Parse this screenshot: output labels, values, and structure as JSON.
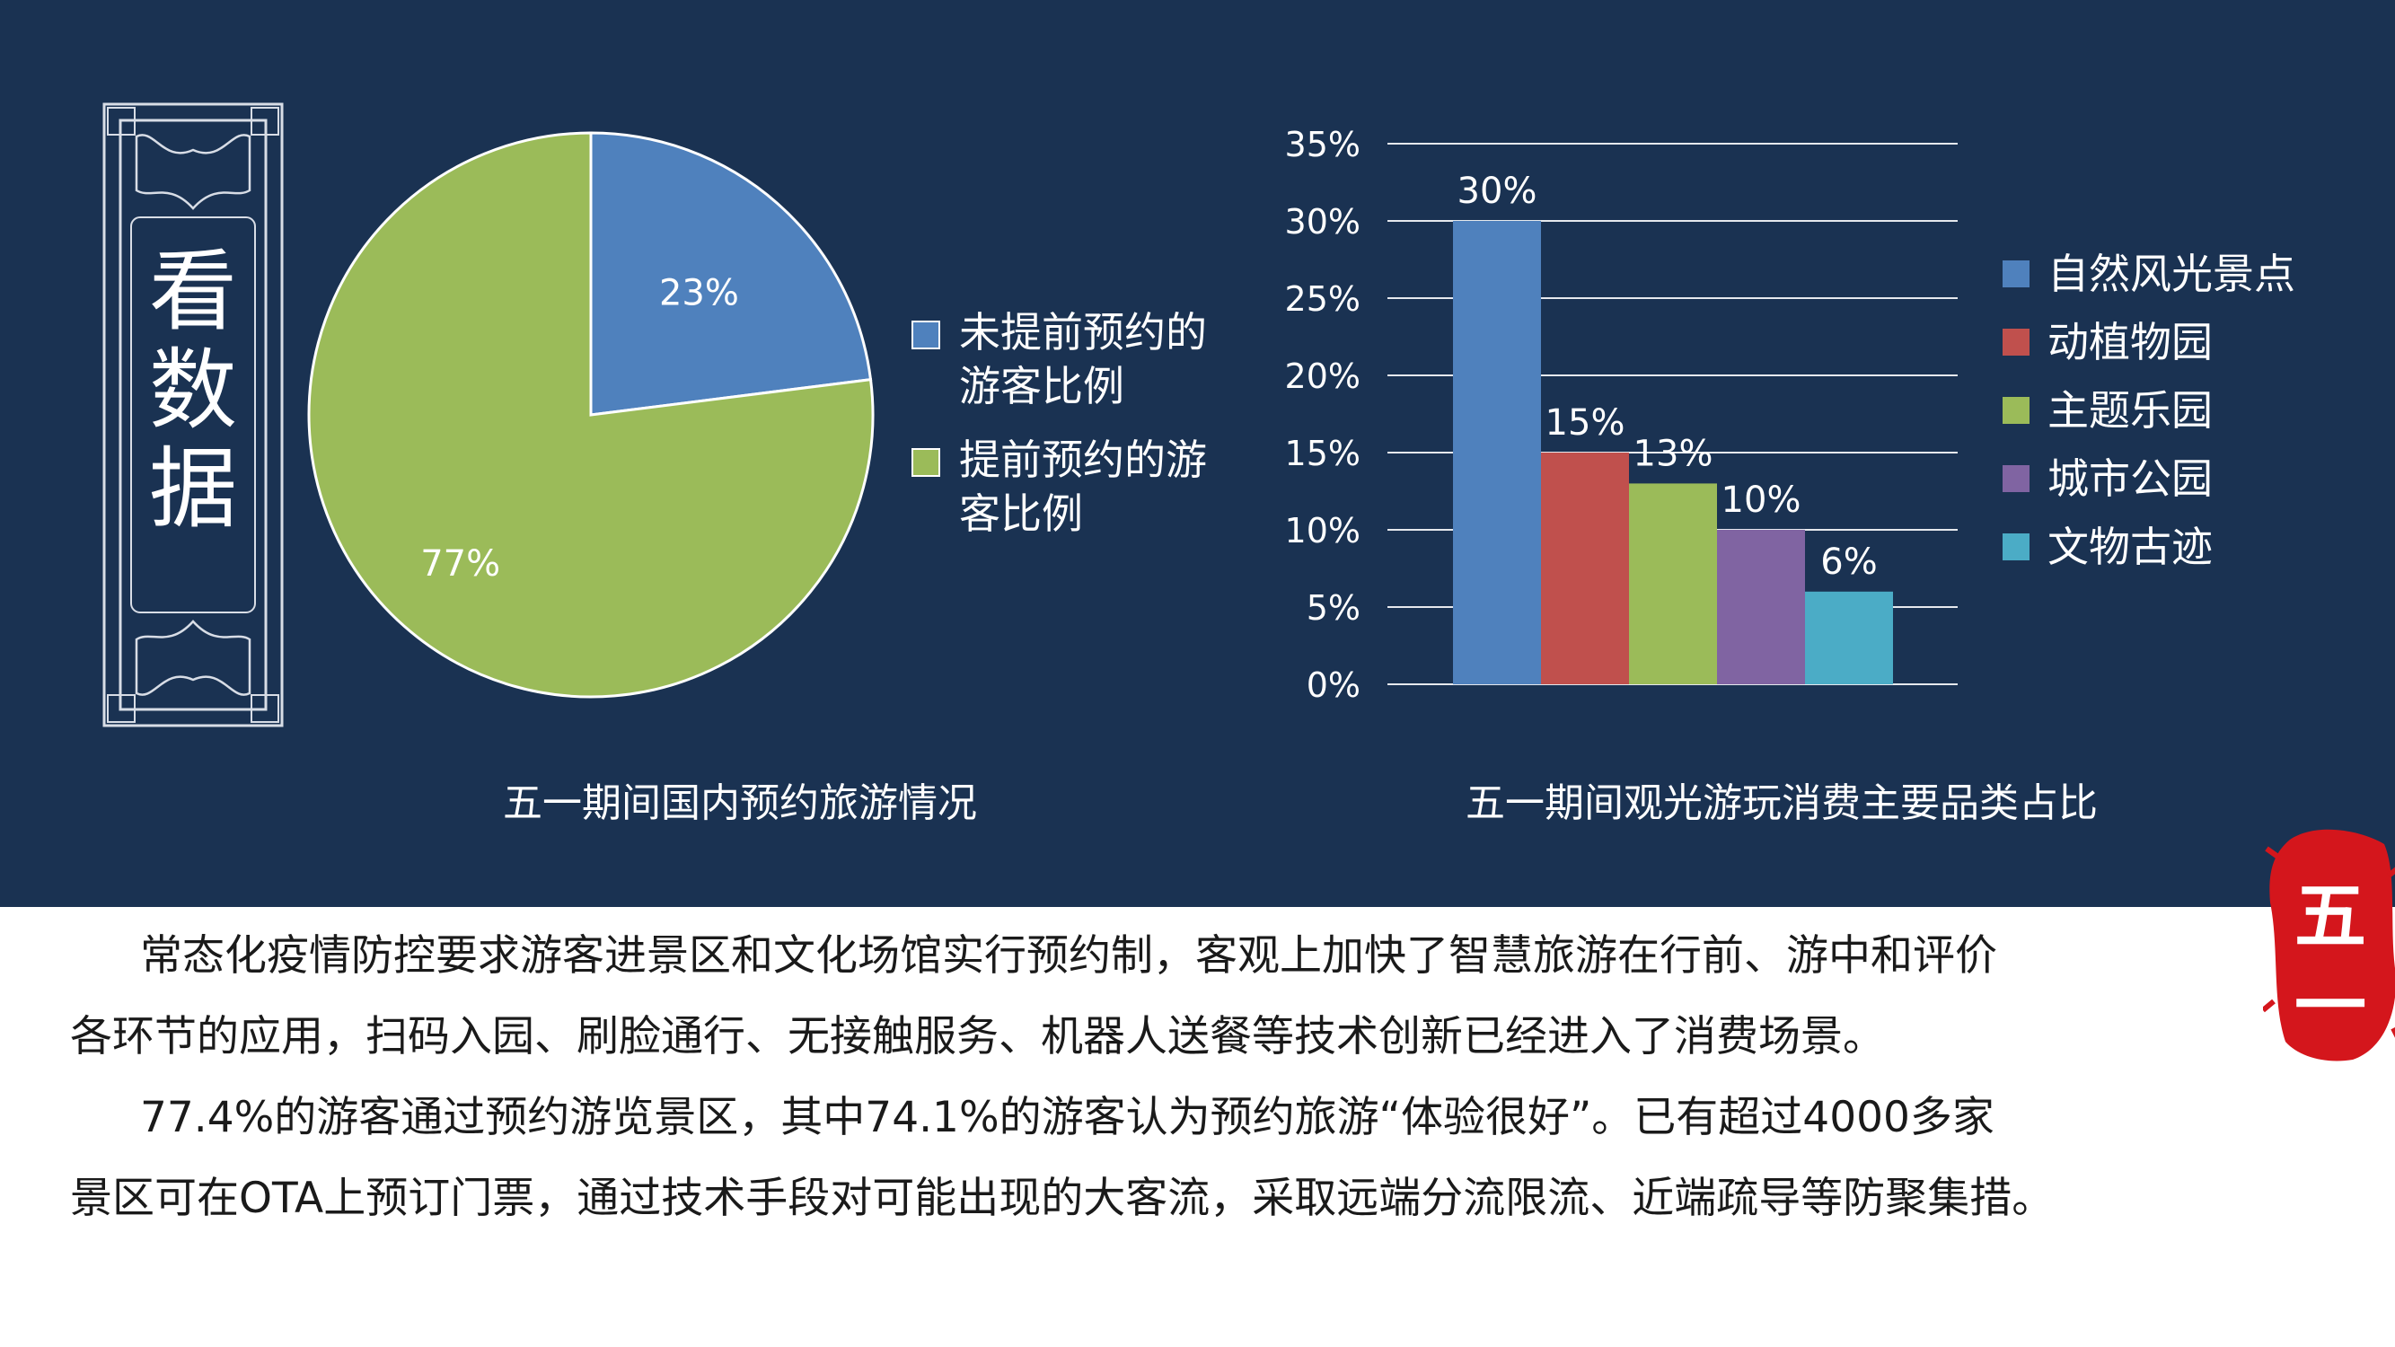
{
  "side_title": [
    "看",
    "数",
    "据"
  ],
  "seal_text": [
    "五",
    "一"
  ],
  "colors": {
    "background": "#1a3252",
    "pie_blue": "#4f81bd",
    "pie_green": "#9bbb59",
    "bar_series": [
      "#4f81bd",
      "#c0504d",
      "#9bbb59",
      "#8064a2",
      "#4bacc6"
    ],
    "seal_red": "#d4161c"
  },
  "chart_data": [
    {
      "type": "pie",
      "title": "五一期间国内预约旅游情况",
      "slices": [
        {
          "label": "未提前预约的游客比例",
          "legend_lines": [
            "未提前预约的",
            "游客比例"
          ],
          "value": 23,
          "display": "23%"
        },
        {
          "label": "提前预约的游客比例",
          "legend_lines": [
            "提前预约的游",
            "客比例"
          ],
          "value": 77,
          "display": "77%"
        }
      ],
      "legend_position": "right"
    },
    {
      "type": "bar",
      "title": "五一期间观光游玩消费主要品类占比",
      "categories": [
        "自然风光景点",
        "动植物园",
        "主题乐园",
        "城市公园",
        "文物古迹"
      ],
      "values": [
        30,
        15,
        13,
        10,
        6
      ],
      "data_labels": [
        "30%",
        "15%",
        "13%",
        "10%",
        "6%"
      ],
      "ylim": [
        0,
        35
      ],
      "yticks": [
        "0%",
        "5%",
        "10%",
        "15%",
        "20%",
        "25%",
        "30%",
        "35%"
      ],
      "grid": true,
      "legend_position": "right"
    }
  ],
  "paragraphs": [
    [
      "常态化疫情防控要求游客进景区和文化场馆实行预约制，客观上加快了智慧旅游在行前、游中和评价",
      "各环节的应用，扫码入园、刷脸通行、无接触服务、机器人送餐等技术创新已经进入了消费场景。"
    ],
    [
      "77.4%的游客通过预约游览景区，其中74.1%的游客认为预约旅游“体验很好”。已有超过4000多家",
      "景区可在OTA上预订门票，通过技术手段对可能出现的大客流，采取远端分流限流、近端疏导等防聚集措。"
    ]
  ]
}
